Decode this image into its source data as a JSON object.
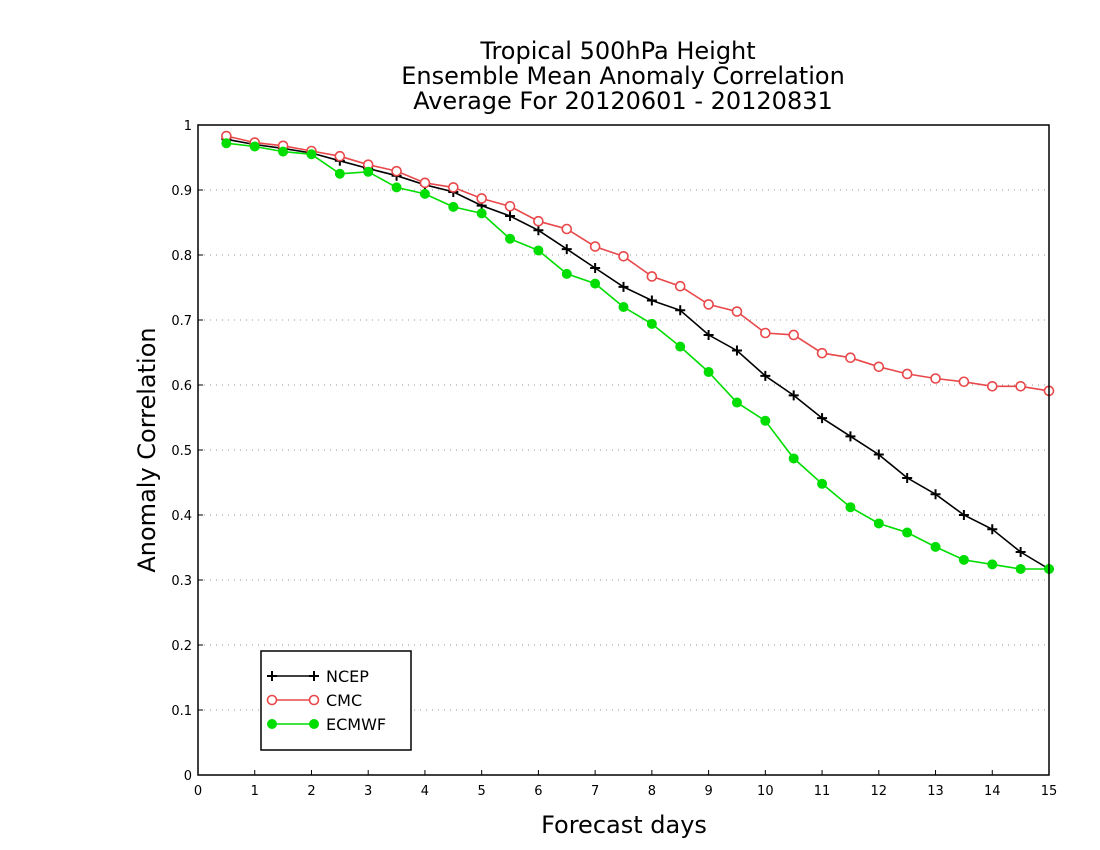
{
  "chart_data": {
    "type": "line",
    "title_lines": [
      "Tropical 500hPa Height",
      "Ensemble Mean Anomaly Correlation",
      "Average For 20120601 - 20120831"
    ],
    "xlabel": "Forecast days",
    "ylabel": "Anomaly Correlation",
    "xlim": [
      0,
      15
    ],
    "ylim": [
      0,
      1
    ],
    "x_ticks": [
      "0",
      "1",
      "2",
      "3",
      "4",
      "5",
      "6",
      "7",
      "8",
      "9",
      "10",
      "11",
      "12",
      "13",
      "14",
      "15"
    ],
    "y_ticks": [
      "0",
      "0.1",
      "0.2",
      "0.3",
      "0.4",
      "0.5",
      "0.6",
      "0.7",
      "0.8",
      "0.9",
      "1"
    ],
    "grid": "horizontal dotted",
    "legend_position": "bottom-left",
    "x": [
      0.5,
      1,
      1.5,
      2,
      2.5,
      3,
      3.5,
      4,
      4.5,
      5,
      5.5,
      6,
      6.5,
      7,
      7.5,
      8,
      8.5,
      9,
      9.5,
      10,
      10.5,
      11,
      11.5,
      12,
      12.5,
      13,
      13.5,
      14,
      14.5,
      15
    ],
    "series": [
      {
        "name": "NCEP",
        "color": "#000000",
        "marker": "plus",
        "values": [
          0.978,
          0.97,
          0.964,
          0.957,
          0.945,
          0.933,
          0.922,
          0.908,
          0.897,
          0.876,
          0.86,
          0.838,
          0.809,
          0.78,
          0.751,
          0.73,
          0.715,
          0.677,
          0.653,
          0.614,
          0.584,
          0.549,
          0.521,
          0.493,
          0.457,
          0.432,
          0.4,
          0.378,
          0.343,
          0.317
        ]
      },
      {
        "name": "CMC",
        "color": "#e8484a",
        "marker": "open-circle",
        "values": [
          0.983,
          0.973,
          0.968,
          0.96,
          0.952,
          0.939,
          0.929,
          0.911,
          0.904,
          0.887,
          0.875,
          0.852,
          0.84,
          0.813,
          0.798,
          0.767,
          0.752,
          0.724,
          0.713,
          0.68,
          0.677,
          0.649,
          0.642,
          0.628,
          0.617,
          0.61,
          0.605,
          0.598,
          0.598,
          0.591
        ]
      },
      {
        "name": "ECMWF",
        "color": "#00dd00",
        "marker": "filled-circle",
        "values": [
          0.972,
          0.967,
          0.959,
          0.955,
          0.925,
          0.928,
          0.904,
          0.894,
          0.874,
          0.864,
          0.825,
          0.807,
          0.771,
          0.756,
          0.72,
          0.694,
          0.659,
          0.62,
          0.573,
          0.545,
          0.487,
          0.448,
          0.412,
          0.387,
          0.373,
          0.351,
          0.331,
          0.324,
          0.317,
          0.317
        ]
      }
    ]
  }
}
